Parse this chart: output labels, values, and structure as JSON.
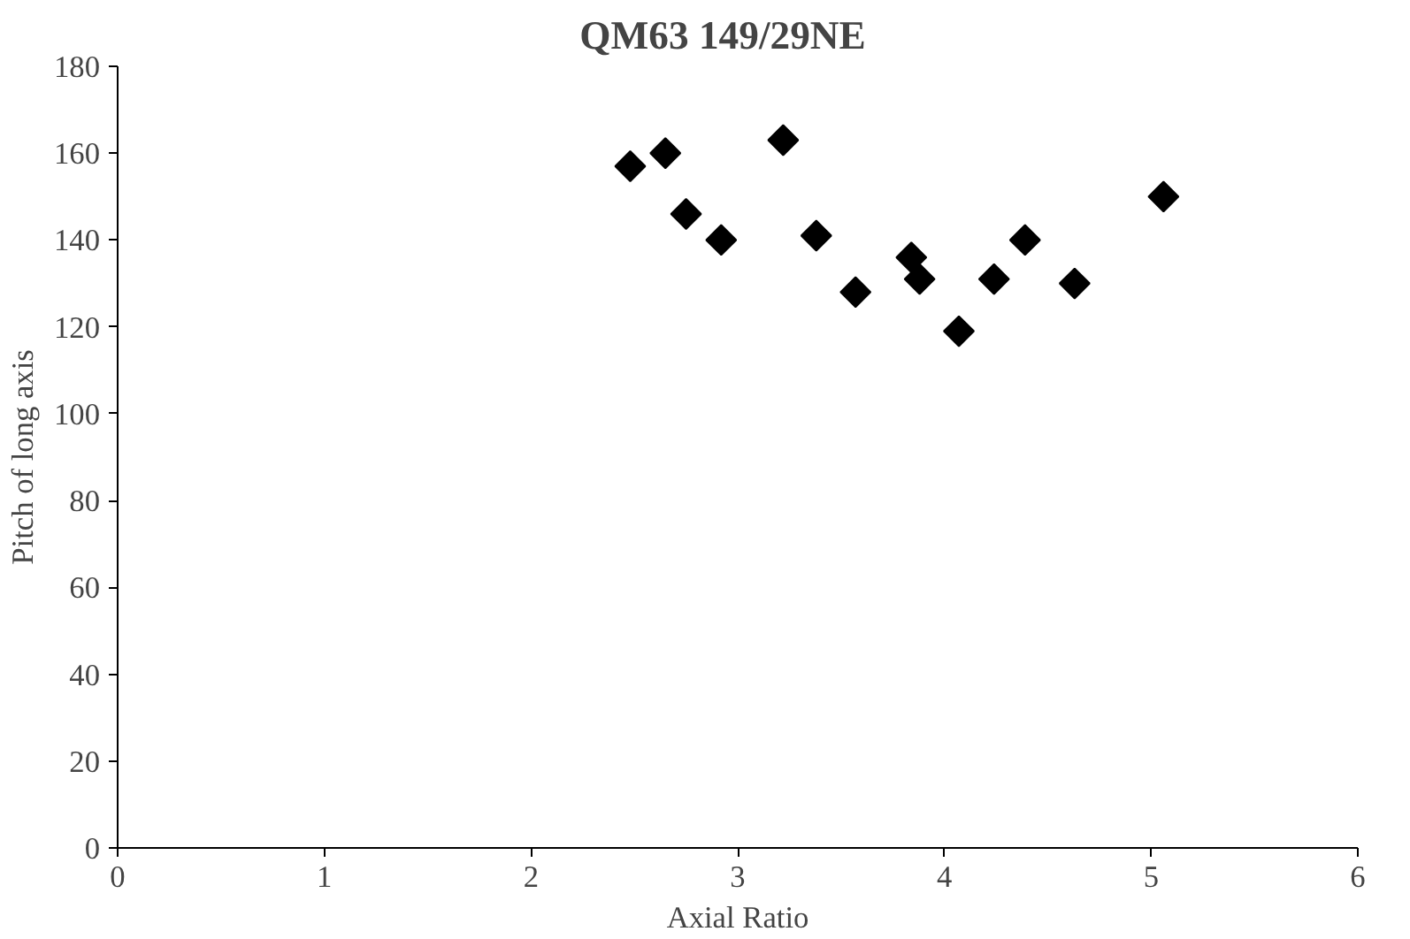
{
  "chart_data": {
    "type": "scatter",
    "title": "QM63    149/29NE",
    "xlabel": "Axial Ratio",
    "ylabel": "Pitch of long axis",
    "x": [
      2.48,
      2.65,
      2.75,
      2.92,
      3.22,
      3.38,
      3.57,
      3.84,
      3.88,
      4.07,
      4.24,
      4.39,
      4.63,
      5.06
    ],
    "values": [
      157,
      160,
      146,
      140,
      163,
      141,
      128,
      136,
      131,
      119,
      131,
      140,
      130,
      150
    ],
    "color": "#000000",
    "marker": "diamond",
    "grid": false,
    "xlim": [
      0,
      6
    ],
    "xticks": [
      0,
      1,
      2,
      3,
      4,
      5,
      6
    ],
    "ylim": [
      0,
      180
    ],
    "yticks": [
      0,
      20,
      40,
      60,
      80,
      100,
      120,
      140,
      160,
      180
    ]
  }
}
